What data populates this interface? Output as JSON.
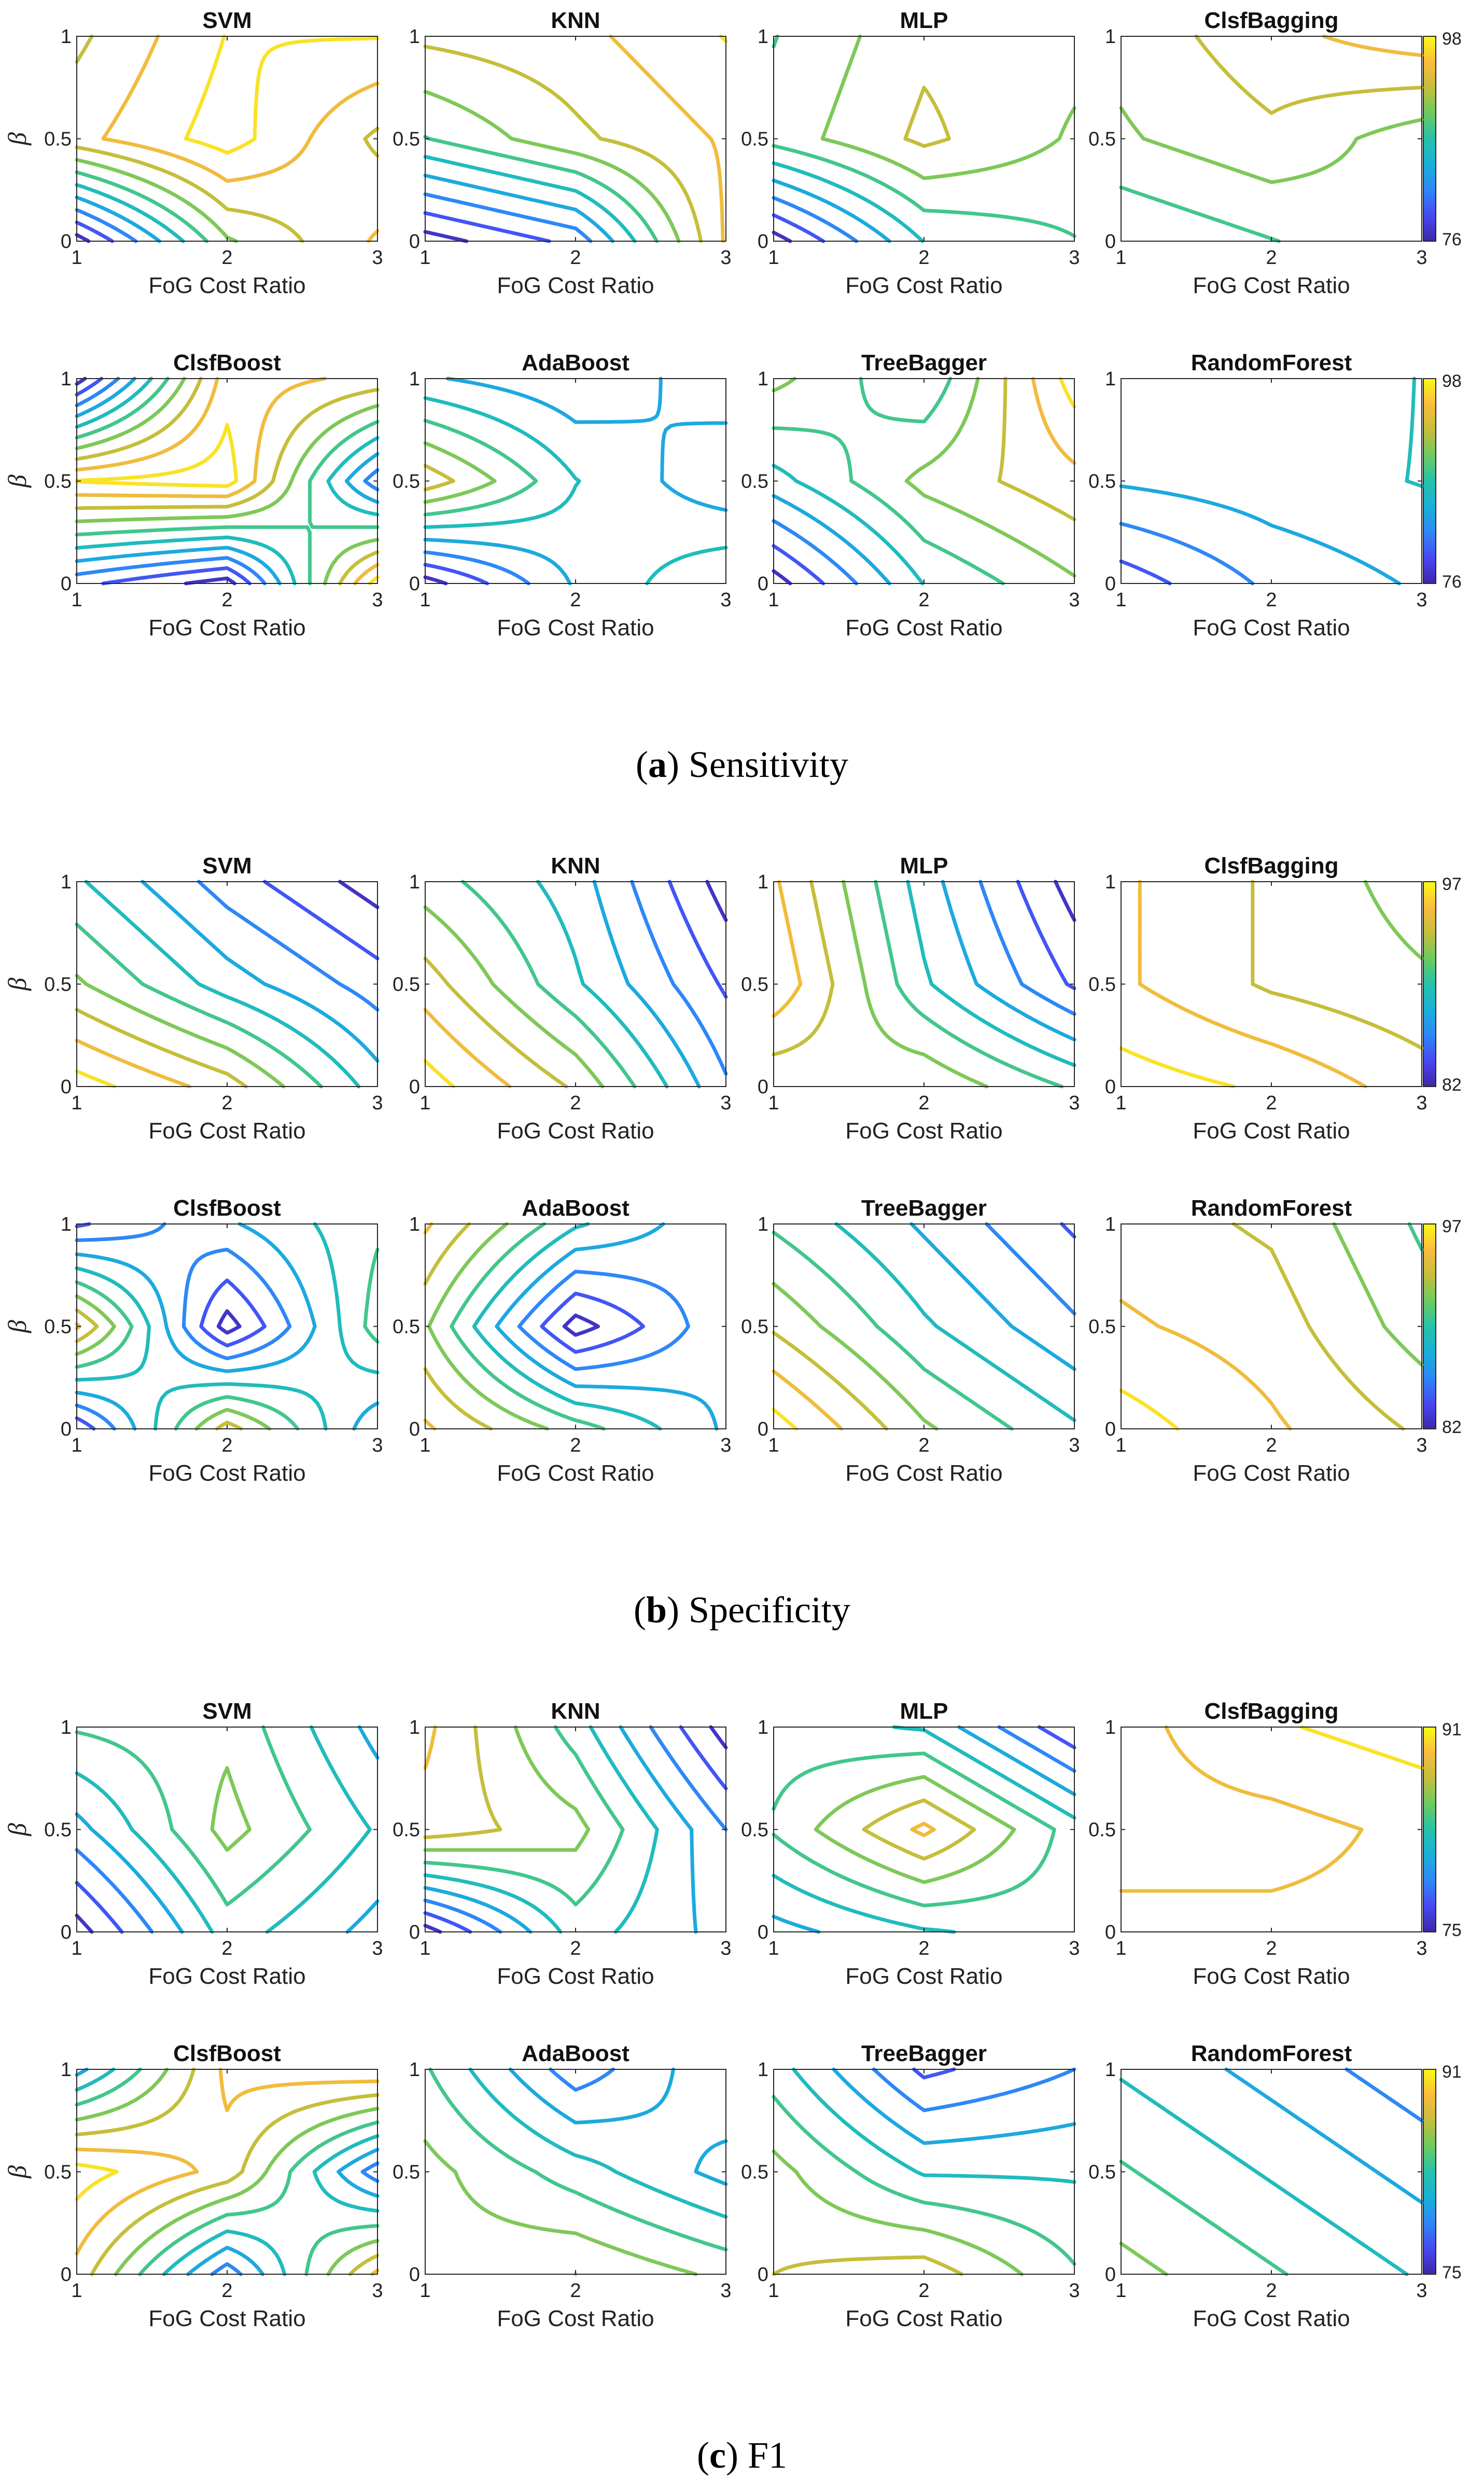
{
  "figure": {
    "panels": [
      {
        "letter": "a",
        "name": "Sensitivity",
        "cbar_min": "76",
        "cbar_max": "98"
      },
      {
        "letter": "b",
        "name": "Specificity",
        "cbar_min": "82",
        "cbar_max": "97"
      },
      {
        "letter": "c",
        "name": "F1",
        "cbar_min": "75",
        "cbar_max": "91"
      }
    ]
  },
  "chart_data": {
    "type": "contour",
    "colormap": "parula",
    "xlabel": "FoG Cost Ratio",
    "ylabel": "β",
    "x_ticks": [
      "1",
      "2",
      "3"
    ],
    "y_ticks": [
      "0",
      "0.5",
      "1"
    ],
    "xlim": [
      1,
      3
    ],
    "ylim": [
      0,
      1
    ],
    "classifiers": [
      "SVM",
      "KNN",
      "MLP",
      "ClsfBagging",
      "ClsfBoost",
      "AdaBoost",
      "TreeBagger",
      "RandomForest"
    ],
    "grid_x": [
      1,
      2,
      3
    ],
    "grid_y": [
      0,
      0.5,
      1
    ],
    "metrics": [
      {
        "name": "Sensitivity",
        "range": [
          76,
          98
        ],
        "values": {
          "SVM": [
            [
              76,
              90,
              95
            ],
            [
              94,
              98,
              92
            ],
            [
              92,
              97,
              97
            ]
          ],
          "KNN": [
            [
              76,
              80,
              95
            ],
            [
              88,
              92,
              95
            ],
            [
              93,
              94,
              97
            ]
          ],
          "MLP": [
            [
              76,
              86,
              88
            ],
            [
              89,
              93,
              90
            ],
            [
              88,
              92,
              91
            ]
          ],
          "ClsfBagging": [
            [
              86,
              88,
              90
            ],
            [
              90,
              92,
              89
            ],
            [
              91,
              94,
              96
            ]
          ],
          "ClsfBoost": [
            [
              80,
              76,
              98
            ],
            [
              97,
              98,
              80
            ],
            [
              76,
              96,
              94
            ]
          ],
          "AdaBoost": [
            [
              76,
              84,
              88
            ],
            [
              94,
              86,
              82
            ],
            [
              84,
              82,
              85
            ]
          ],
          "TreeBagger": [
            [
              76,
              86,
              90
            ],
            [
              85,
              91,
              94
            ],
            [
              91,
              86,
              98
            ]
          ],
          "RandomForest": [
            [
              78,
              82,
              84
            ],
            [
              84,
              85,
              86
            ],
            [
              85,
              84,
              86
            ]
          ]
        }
      },
      {
        "name": "Specificity",
        "range": [
          82,
          97
        ],
        "values": {
          "SVM": [
            [
              97,
              94,
              88
            ],
            [
              92,
              88,
              85
            ],
            [
              89,
              85,
              82
            ]
          ],
          "KNN": [
            [
              97,
              93,
              86
            ],
            [
              94,
              89,
              84
            ],
            [
              91,
              88,
              82
            ]
          ],
          "MLP": [
            [
              92,
              93,
              90
            ],
            [
              96,
              89,
              84
            ],
            [
              95,
              88,
              82
            ]
          ],
          "ClsfBagging": [
            [
              97,
              96,
              94
            ],
            [
              95,
              93,
              92
            ],
            [
              95,
              93,
              91
            ]
          ],
          "ClsfBoost": [
            [
              83,
              94,
              86
            ],
            [
              95,
              82,
              91
            ],
            [
              84,
              87,
              90
            ]
          ],
          "AdaBoost": [
            [
              95,
              91,
              87
            ],
            [
              92,
              82,
              87
            ],
            [
              95,
              89,
              86
            ]
          ],
          "TreeBagger": [
            [
              97,
              92,
              89
            ],
            [
              93,
              89,
              86
            ],
            [
              90,
              87,
              84
            ]
          ],
          "RandomForest": [
            [
              97,
              95,
              93
            ],
            [
              95,
              94,
              91
            ],
            [
              94,
              93,
              90
            ]
          ]
        }
      },
      {
        "name": "F1",
        "range": [
          75,
          91
        ],
        "values": {
          "SVM": [
            [
              75,
              83,
              80
            ],
            [
              80,
              86,
              82
            ],
            [
              84,
              85,
              80
            ]
          ],
          "KNN": [
            [
              75,
              83,
              80
            ],
            [
              88,
              86,
              79
            ],
            [
              89,
              83,
              75
            ]
          ],
          "MLP": [
            [
              80,
              82,
              83
            ],
            [
              84,
              89,
              83
            ],
            [
              83,
              82,
              76
            ]
          ],
          "ClsfBagging": [
            [
              89,
              89,
              89
            ],
            [
              88,
              88,
              89
            ],
            [
              88,
              90,
              91
            ]
          ],
          "ClsfBoost": [
            [
              88,
              78,
              89
            ],
            [
              91,
              88,
              78
            ],
            [
              80,
              89,
              90
            ]
          ],
          "AdaBoost": [
            [
              86,
              87,
              85
            ],
            [
              86,
              83,
              80
            ],
            [
              84,
              78,
              82
            ]
          ],
          "TreeBagger": [
            [
              87,
              88,
              84
            ],
            [
              86,
              82,
              82
            ],
            [
              83,
              77,
              79
            ]
          ],
          "RandomForest": [
            [
              86,
              84,
              82
            ],
            [
              84,
              82,
              80
            ],
            [
              82,
              80,
              78
            ]
          ]
        }
      }
    ]
  }
}
